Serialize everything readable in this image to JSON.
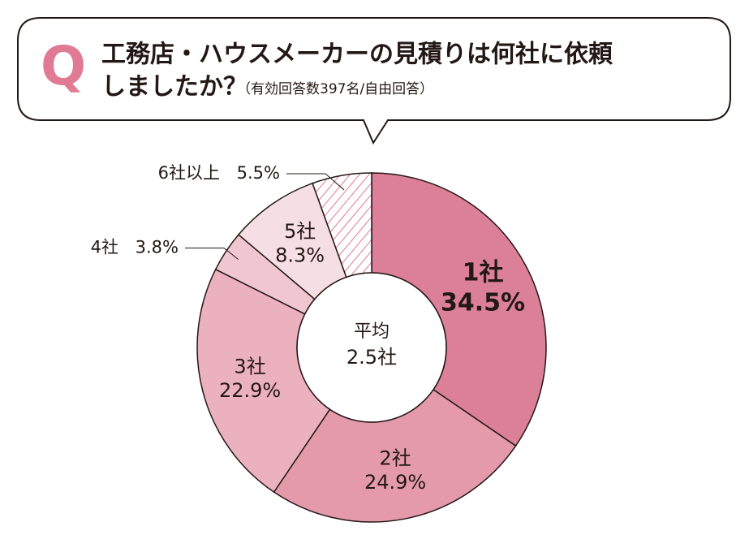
{
  "chart_data": {
    "type": "donut",
    "question_mark": "Q",
    "title": "工務店・ハウスメーカーの見積りは何社に依頼",
    "title_line2": "しましたか？",
    "subtitle": "（有効回答数397名/自由回答）",
    "center_label": "平均",
    "center_value": "2.5社",
    "categories": [
      "1社",
      "2社",
      "3社",
      "4社",
      "5社",
      "6社以上"
    ],
    "values": [
      34.5,
      24.9,
      22.9,
      3.8,
      8.3,
      5.5
    ],
    "value_labels": [
      "34.5%",
      "24.9%",
      "22.9%",
      "3.8%",
      "8.3%",
      "5.5%"
    ],
    "colors": [
      "#dc7f99",
      "#e49aab",
      "#ebb1bf",
      "#f0c7d0",
      "#f6dfe4",
      "#ffffff"
    ],
    "patterns": [
      null,
      null,
      null,
      null,
      null,
      "hatch"
    ],
    "accent_color": "#e07a95"
  }
}
